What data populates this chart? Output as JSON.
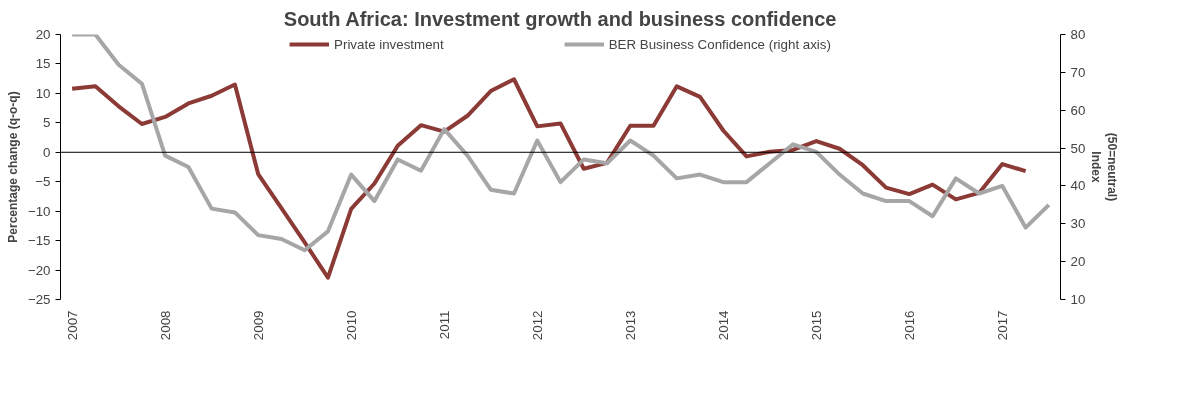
{
  "chart_data": {
    "type": "line",
    "title": "South Africa: Investment growth and business confidence",
    "categories": [
      "2007",
      null,
      null,
      null,
      "2008",
      null,
      null,
      null,
      "2009",
      null,
      null,
      null,
      "2010",
      null,
      null,
      null,
      "2011",
      null,
      null,
      null,
      "2012",
      null,
      null,
      null,
      "2013",
      null,
      null,
      null,
      "2014",
      null,
      null,
      null,
      "2015",
      null,
      null,
      null,
      "2016",
      null,
      null,
      null,
      "2017",
      null,
      null
    ],
    "series": [
      {
        "name": "Private investment",
        "color": "#8b3a36",
        "values": [
          10.8,
          11.2,
          7.8,
          4.8,
          6.0,
          8.3,
          9.6,
          11.5,
          -3.7,
          -9.5,
          -15.3,
          -21.3,
          -9.6,
          -5.3,
          1.1,
          4.6,
          3.5,
          6.2,
          10.4,
          12.4,
          4.4,
          4.9,
          -2.8,
          -1.8,
          4.5,
          4.5,
          11.2,
          9.4,
          3.7,
          -0.7,
          0.1,
          0.4,
          1.9,
          0.6,
          -2.2,
          -6.0,
          -7.1,
          -5.5,
          -8.0,
          -6.9,
          -2.0,
          -3.2,
          null
        ]
      },
      {
        "name": "BER Business Confidence (right axis)",
        "color": "#a6a6a6",
        "axis": "y2",
        "values": [
          80,
          80,
          72,
          67,
          48,
          45,
          34,
          33,
          27,
          26,
          23,
          28,
          43,
          36,
          47,
          44,
          55,
          48,
          39,
          38,
          52,
          41,
          47,
          46,
          52,
          48,
          42,
          43,
          41,
          41,
          46,
          51,
          49,
          43,
          38,
          36,
          36,
          32,
          42,
          38,
          40,
          29,
          35
        ]
      }
    ],
    "ylabel": "Percentage change (q-o-q)",
    "y2label": "Index\n(50=neutral)",
    "ylim": [
      -25,
      20
    ],
    "yticks": [
      -25,
      -20,
      -15,
      -10,
      -5,
      0,
      5,
      10,
      15,
      20
    ],
    "y2lim": [
      10,
      80
    ],
    "y2ticks": [
      10,
      20,
      30,
      40,
      50,
      60,
      70,
      80
    ],
    "ref_lines": [
      {
        "axis": "y",
        "value": 0,
        "color": "#000000"
      }
    ],
    "legend": "top",
    "grid": false,
    "marker": "none",
    "line_style": "solid"
  }
}
